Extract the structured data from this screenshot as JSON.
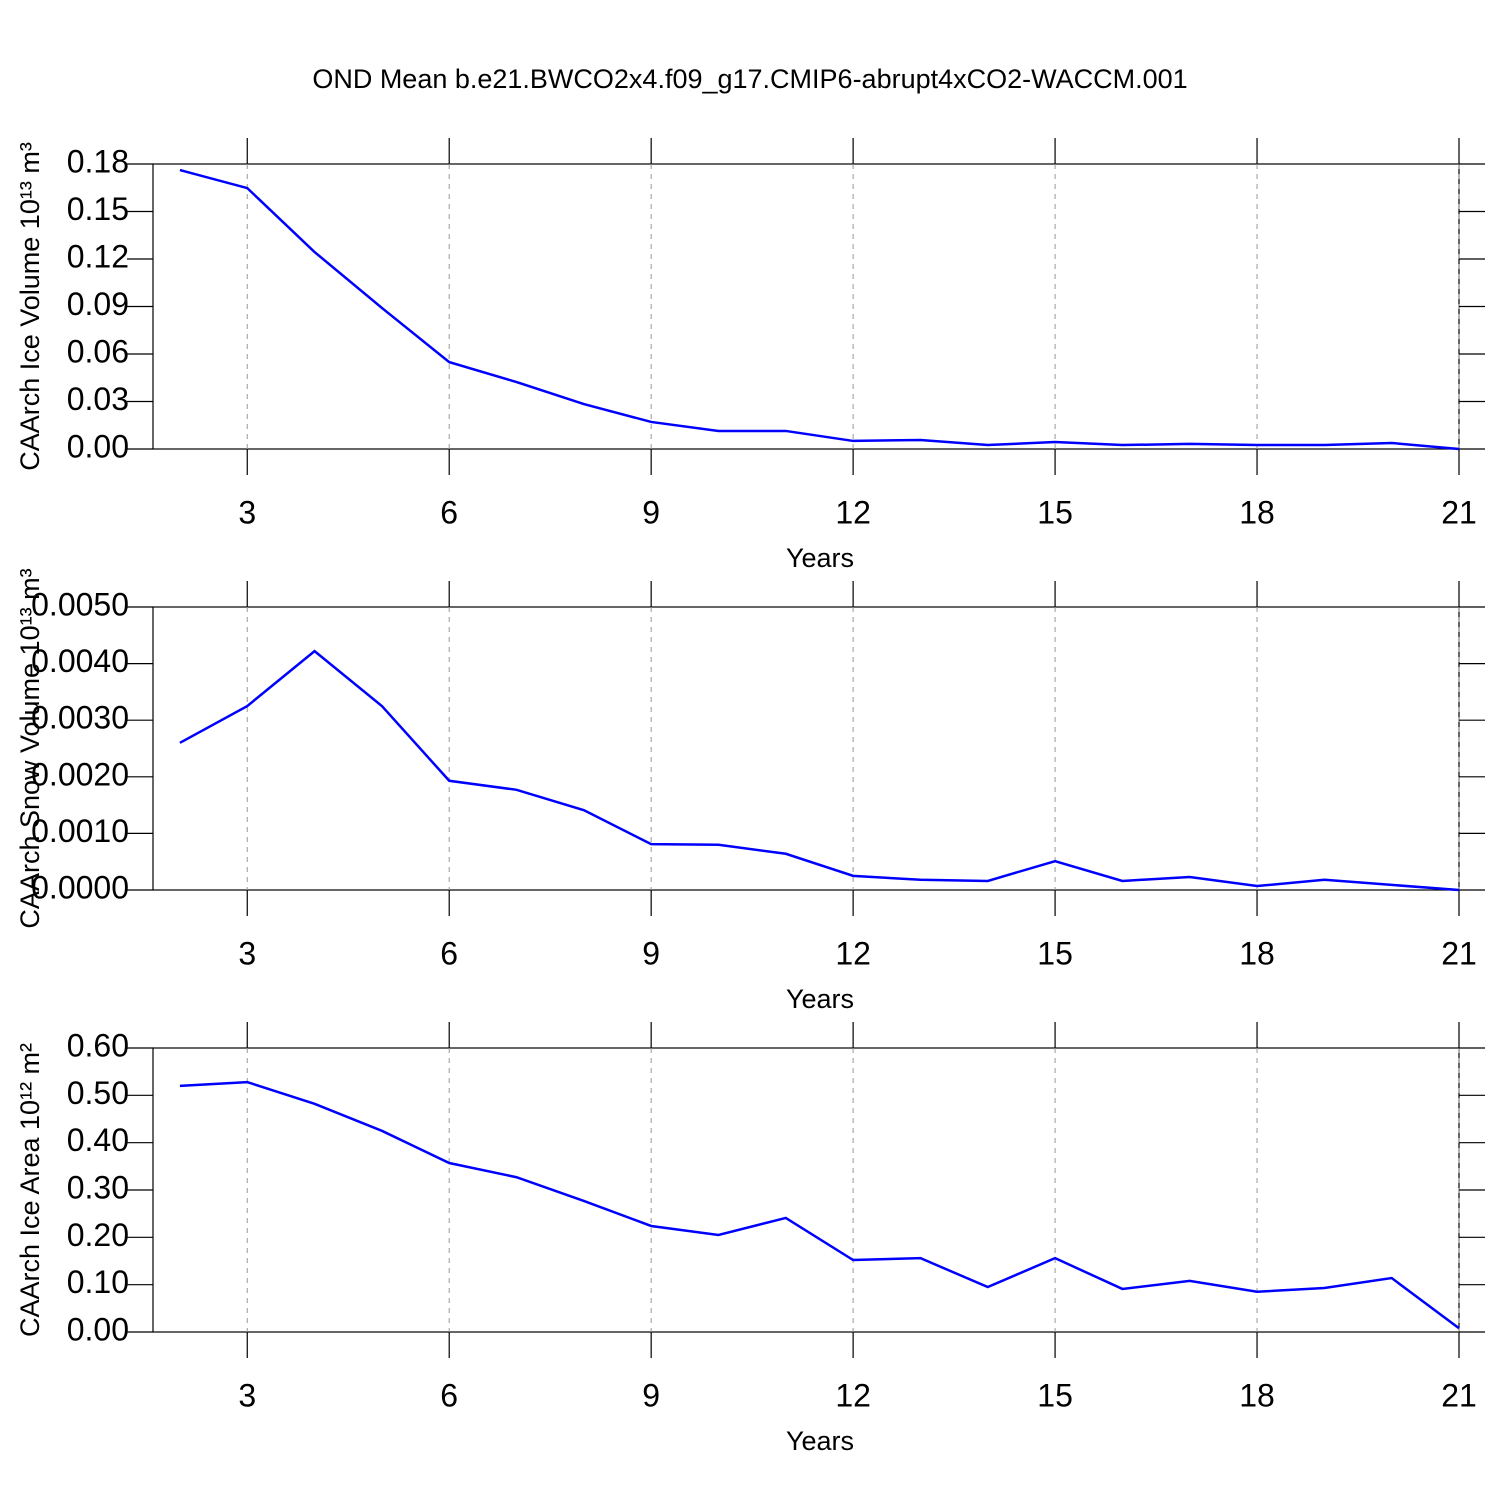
{
  "title": "OND Mean b.e21.BWCO2x4.f09_g17.CMIP6-abrupt4xCO2-WACCM.001",
  "chart_data": [
    {
      "type": "line",
      "ylabel": "CAArch Ice Volume 10¹³ m³",
      "xlabel": "Years",
      "x": [
        2,
        3,
        4,
        5,
        6,
        7,
        8,
        9,
        10,
        11,
        12,
        13,
        14,
        15,
        16,
        17,
        18,
        19,
        20,
        21
      ],
      "series": [
        {
          "color": "#0000ff",
          "values": [
            0.1762,
            0.1648,
            0.1244,
            0.0891,
            0.0549,
            0.0423,
            0.0284,
            0.0171,
            0.0114,
            0.0114,
            0.0051,
            0.0057,
            0.0025,
            0.0044,
            0.0025,
            0.0032,
            0.0025,
            0.0025,
            0.0038,
            0.0
          ]
        }
      ],
      "xlim": [
        1.6,
        21
      ],
      "xticks": [
        3,
        6,
        9,
        12,
        15,
        18,
        21
      ],
      "ylim": [
        0,
        0.18
      ],
      "yticks": [
        {
          "value": 0,
          "label": "0.00"
        },
        0.03,
        0.06,
        0.09,
        0.12,
        0.15,
        0.18
      ],
      "xgrid": true
    },
    {
      "type": "line",
      "ylabel": "CAArch Snow Volume 10¹³ m³",
      "xlabel": "Years",
      "x": [
        2,
        3,
        4,
        5,
        6,
        7,
        8,
        9,
        10,
        11,
        12,
        13,
        14,
        15,
        16,
        17,
        18,
        19,
        20,
        21
      ],
      "series": [
        {
          "color": "#0000ff",
          "values": [
            0.0026,
            0.00325,
            0.00422,
            0.00325,
            0.00193,
            0.00177,
            0.00141,
            0.00081,
            0.0008,
            0.00064,
            0.00025,
            0.00018,
            0.00016,
            0.00051,
            0.00016,
            0.00023,
            7e-05,
            0.00018,
            9e-05,
            0.0
          ]
        }
      ],
      "xlim": [
        1.6,
        21
      ],
      "xticks": [
        3,
        6,
        9,
        12,
        15,
        18,
        21
      ],
      "ylim": [
        0,
        0.005
      ],
      "yticks": [
        {
          "value": 0,
          "label": "0.0000"
        },
        {
          "value": 0.001,
          "label": "0.0010"
        },
        {
          "value": 0.002,
          "label": "0.0020"
        },
        {
          "value": 0.003,
          "label": "0.0030"
        },
        {
          "value": 0.004,
          "label": "0.0040"
        },
        {
          "value": 0.005,
          "label": "0.0050"
        }
      ],
      "xgrid": true
    },
    {
      "type": "line",
      "ylabel": "CAArch Ice Area 10¹² m²",
      "xlabel": "Years",
      "x": [
        2,
        3,
        4,
        5,
        6,
        7,
        8,
        9,
        10,
        11,
        12,
        13,
        14,
        15,
        16,
        17,
        18,
        19,
        20,
        21
      ],
      "series": [
        {
          "color": "#0000ff",
          "values": [
            0.52,
            0.528,
            0.482,
            0.425,
            0.357,
            0.327,
            0.277,
            0.224,
            0.205,
            0.241,
            0.152,
            0.156,
            0.095,
            0.156,
            0.091,
            0.108,
            0.085,
            0.093,
            0.114,
            0.008
          ]
        }
      ],
      "xlim": [
        1.6,
        21
      ],
      "xticks": [
        3,
        6,
        9,
        12,
        15,
        18,
        21
      ],
      "ylim": [
        0,
        0.6
      ],
      "yticks": [
        {
          "value": 0,
          "label": "0.00"
        },
        {
          "value": 0.1,
          "label": "0.10"
        },
        {
          "value": 0.2,
          "label": "0.20"
        },
        {
          "value": 0.3,
          "label": "0.30"
        },
        {
          "value": 0.4,
          "label": "0.40"
        },
        {
          "value": 0.5,
          "label": "0.50"
        },
        {
          "value": 0.6,
          "label": "0.60"
        }
      ],
      "xgrid": true
    }
  ]
}
